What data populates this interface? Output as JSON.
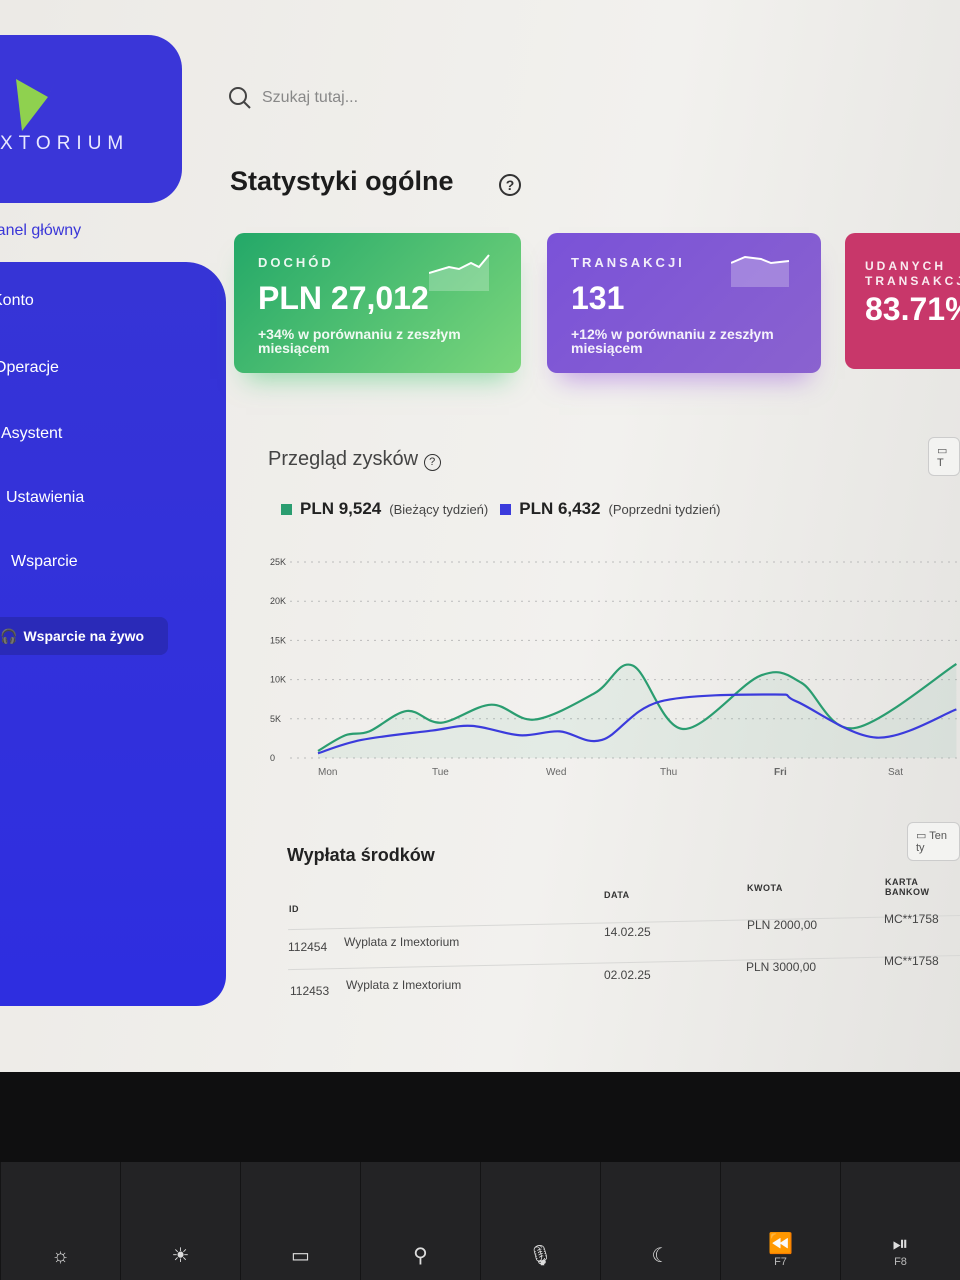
{
  "sidebar": {
    "logo_text": "XTORIUM",
    "items": [
      {
        "label": "Panel główny",
        "active": true
      },
      {
        "label": "Konto"
      },
      {
        "label": "Operacje"
      },
      {
        "label": "Asystent"
      },
      {
        "label": "Ustawienia"
      },
      {
        "label": "Wsparcie"
      }
    ],
    "live_support": "Wsparcie na żywo"
  },
  "search": {
    "placeholder": "Szukaj tutaj..."
  },
  "header": {
    "title": "Statystyki ogólne"
  },
  "cards": [
    {
      "label": "DOCHÓD",
      "value": "PLN 27,012",
      "sub": "+34% w porównaniu z zeszłym miesiącem",
      "color": "#2fb36c"
    },
    {
      "label": "TRANSAKCJI",
      "value": "131",
      "sub": "+12% w porównaniu z zeszłym miesiącem",
      "color": "#7e58d6"
    },
    {
      "label": "UDANYCH TRANSAKCJI",
      "value": "83.71%",
      "color": "#c8376a"
    }
  ],
  "overview": {
    "title": "Przegląd zysków",
    "date_button": "T",
    "legend": [
      {
        "value": "PLN 9,524",
        "note": "(Bieżący tydzień)",
        "color": "#2a9d70"
      },
      {
        "value": "PLN 6,432",
        "note": "(Poprzedni tydzień)",
        "color": "#3b3bdc"
      }
    ]
  },
  "chart_data": {
    "type": "line",
    "categories": [
      "Mon",
      "Tue",
      "Wed",
      "Thu",
      "Fri",
      "Sat"
    ],
    "ylim": [
      0,
      25000
    ],
    "yticks": [
      "0",
      "5K",
      "10K",
      "15K",
      "20K",
      "25K"
    ],
    "grid": true,
    "series": [
      {
        "name": "PLN 9,524 (Bieżący tydzień)",
        "color": "#2a9d70",
        "points": [
          [
            0,
            900
          ],
          [
            0.24,
            2900
          ],
          [
            0.45,
            3400
          ],
          [
            0.78,
            6000
          ],
          [
            1.08,
            4500
          ],
          [
            1.52,
            6800
          ],
          [
            1.9,
            4900
          ],
          [
            2.43,
            8300
          ],
          [
            2.76,
            11800
          ],
          [
            3.2,
            3700
          ],
          [
            3.88,
            10500
          ],
          [
            4.24,
            9600
          ],
          [
            4.7,
            3800
          ],
          [
            5.6,
            12000
          ]
        ]
      },
      {
        "name": "PLN 6,432 (Poprzedni tydzień)",
        "color": "#3b3bdc",
        "points": [
          [
            0,
            600
          ],
          [
            0.38,
            2300
          ],
          [
            1,
            3500
          ],
          [
            1.35,
            4100
          ],
          [
            1.77,
            2900
          ],
          [
            2.12,
            3400
          ],
          [
            2.49,
            2300
          ],
          [
            3,
            7200
          ],
          [
            4,
            8100
          ],
          [
            4.2,
            7200
          ],
          [
            4.9,
            2600
          ],
          [
            5.6,
            6200
          ]
        ]
      }
    ]
  },
  "withdrawals": {
    "title": "Wypłata środków",
    "date_button": "Ten ty",
    "columns": [
      "ID",
      "DATA",
      "KWOTA",
      "KARTA BANKOW"
    ],
    "rows": [
      {
        "id": "112454",
        "desc": "Wyplata z Imextorium",
        "date": "14.02.25",
        "amount": "PLN 2000,00",
        "card": "MC**1758"
      },
      {
        "id": "112453",
        "desc": "Wyplata z Imextorium",
        "date": "02.02.25",
        "amount": "PLN 3000,00",
        "card": "MC**1758"
      }
    ]
  },
  "keyboard": {
    "f7": "F7",
    "f8": "F8"
  }
}
